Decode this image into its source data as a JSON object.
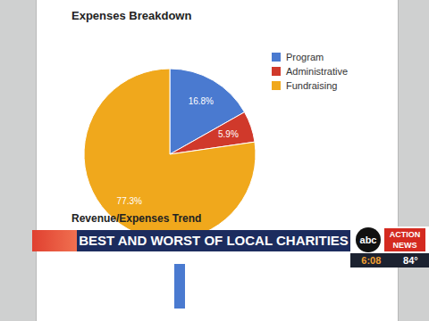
{
  "chart_data": {
    "type": "pie",
    "title": "Expenses Breakdown",
    "categories": [
      "Program",
      "Administrative",
      "Fundraising"
    ],
    "values": [
      16.8,
      5.9,
      77.3
    ],
    "value_labels": [
      "16.8%",
      "5.9%",
      "77.3%"
    ],
    "colors": [
      "#4a7ad0",
      "#d0392b",
      "#f0a81c"
    ],
    "data_labels": true,
    "legend": "right",
    "annotations": [
      "Revenue/Expenses Trend"
    ]
  },
  "broadcast": {
    "headline": "BEST AND WORST OF LOCAL CHARITIES",
    "station": "abc",
    "brand": "ACTION NEWS",
    "time": "6:08",
    "temperature": "84°"
  }
}
